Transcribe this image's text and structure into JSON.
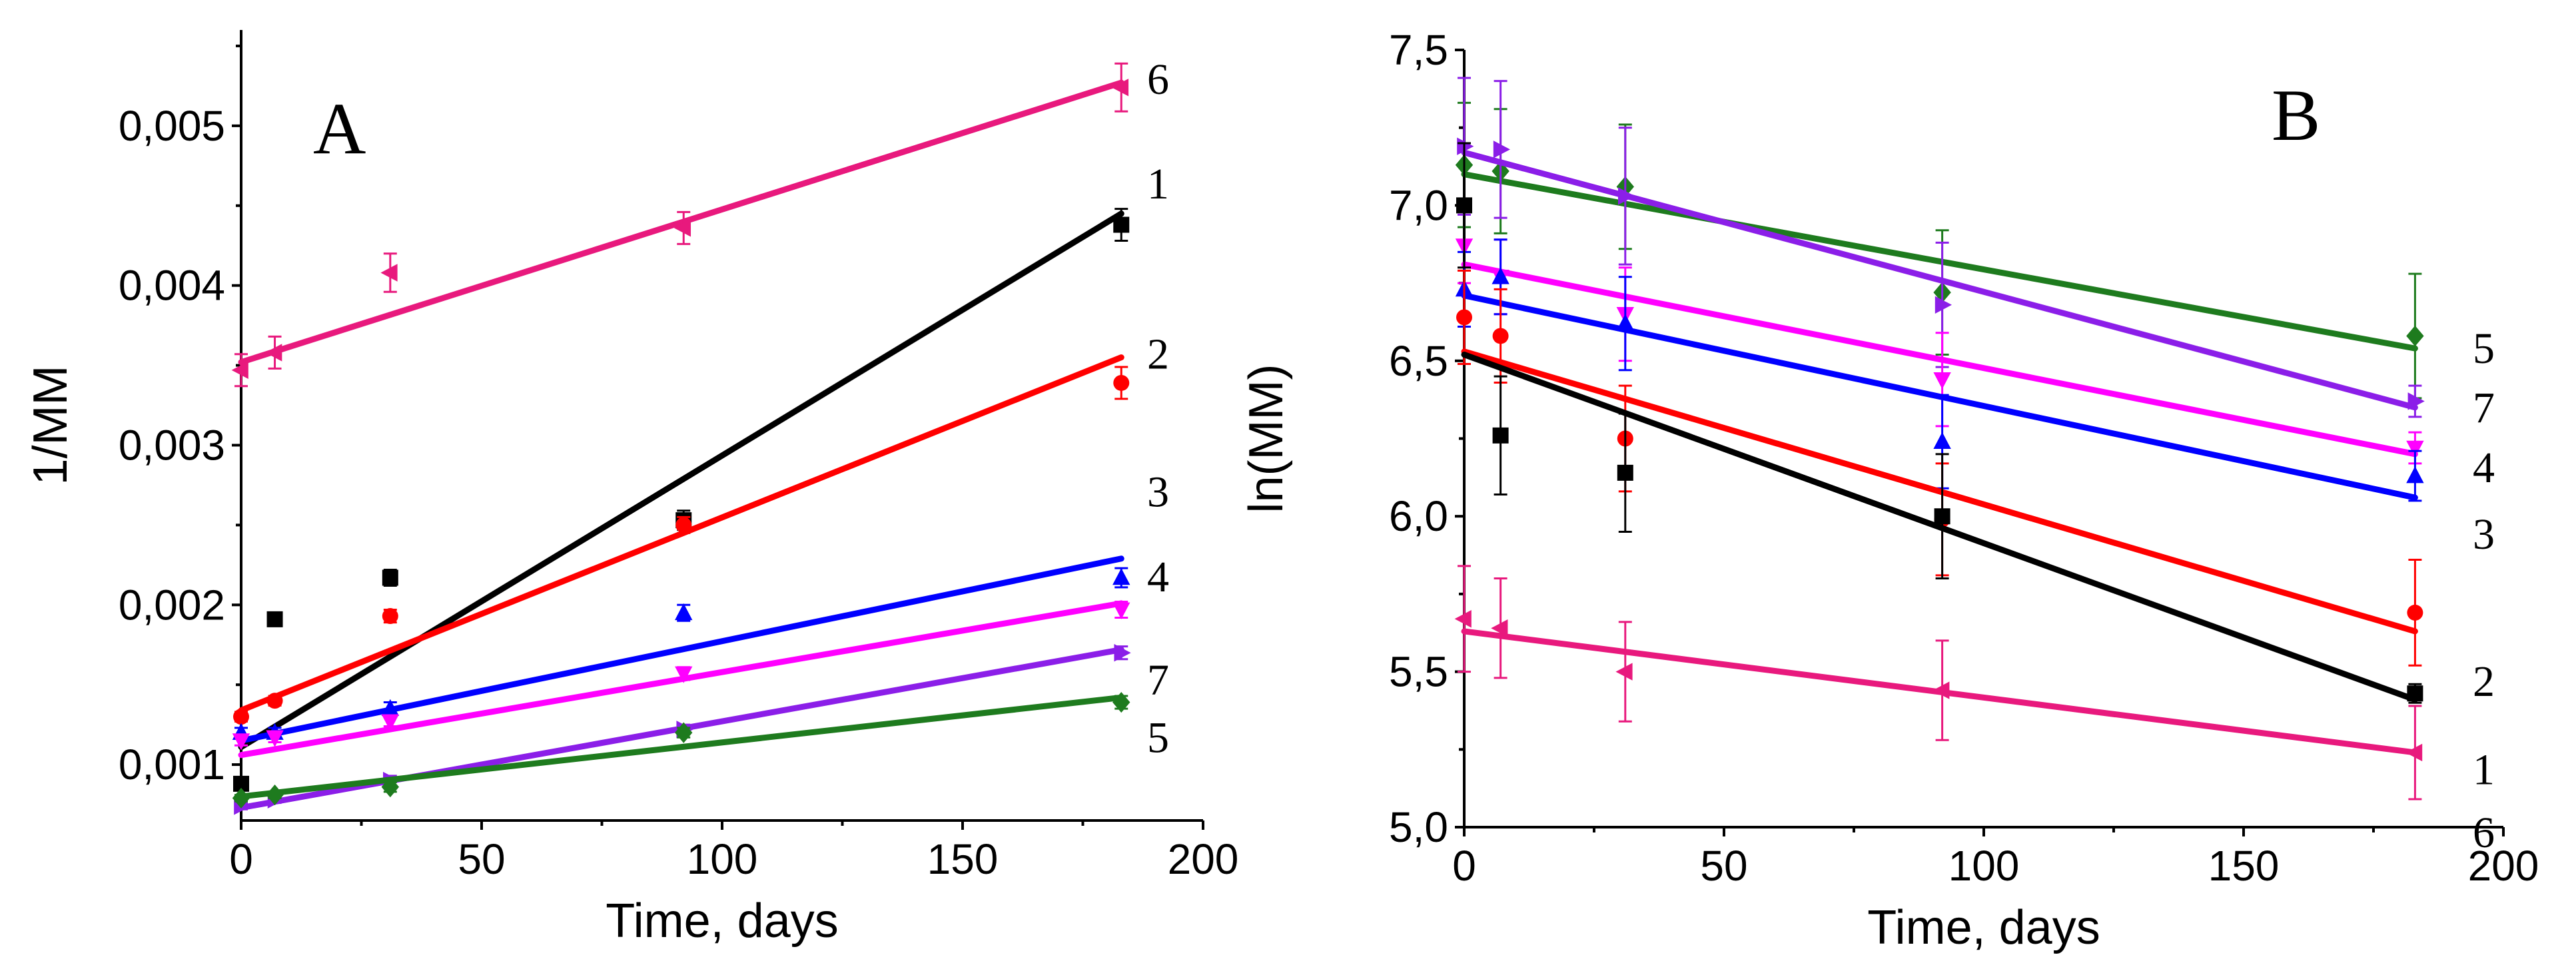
{
  "chart_data": [
    {
      "type": "scatter",
      "panel": "A",
      "title": "",
      "xlabel": "Time, days",
      "ylabel": "1/MM",
      "xlim": [
        0,
        200
      ],
      "ylim": [
        0.00065,
        0.0056
      ],
      "xticks": [
        0,
        50,
        100,
        150,
        200
      ],
      "yticks": [
        0.001,
        0.002,
        0.003,
        0.004,
        0.005
      ],
      "ytick_labels": [
        "0,001",
        "0,002",
        "0,003",
        "0,004",
        "0,005"
      ],
      "series": [
        {
          "name": "6",
          "color": "#e8197d",
          "marker": "left-triangle",
          "x": [
            0,
            7,
            31,
            92,
            183
          ],
          "y": [
            0.00347,
            0.00358,
            0.00408,
            0.00436,
            0.00524
          ],
          "err": [
            0.0001,
            0.0001,
            0.00012,
            0.0001,
            0.00015
          ],
          "fit": [
            0.00352,
            0.00527
          ]
        },
        {
          "name": "1",
          "color": "#000000",
          "marker": "square",
          "x": [
            0,
            7,
            31,
            92,
            183
          ],
          "y": [
            0.00088,
            0.00191,
            0.00217,
            0.00253,
            0.00438
          ],
          "err": [
            3e-05,
            4e-05,
            5e-05,
            6e-05,
            0.0001
          ],
          "fit": [
            0.00111,
            0.00445
          ]
        },
        {
          "name": "2",
          "color": "#ff0000",
          "marker": "circle",
          "x": [
            0,
            7,
            31,
            92,
            183
          ],
          "y": [
            0.0013,
            0.0014,
            0.00193,
            0.0025,
            0.00339
          ],
          "err": [
            3e-05,
            3e-05,
            4e-05,
            5e-05,
            0.0001
          ],
          "fit": [
            0.00134,
            0.00355
          ]
        },
        {
          "name": "3",
          "color": "#0000ff",
          "marker": "up-triangle",
          "x": [
            0,
            7,
            31,
            92,
            183
          ],
          "y": [
            0.0012,
            0.0012,
            0.00135,
            0.00195,
            0.00217
          ],
          "err": [
            3e-05,
            3e-05,
            4e-05,
            5e-05,
            6e-05
          ],
          "fit": [
            0.00115,
            0.00229
          ]
        },
        {
          "name": "4",
          "color": "#ff00ff",
          "marker": "down-triangle",
          "x": [
            0,
            7,
            31,
            92,
            183
          ],
          "y": [
            0.00115,
            0.00117,
            0.00127,
            0.00157,
            0.00197
          ],
          "err": [
            3e-05,
            3e-05,
            3e-05,
            4e-05,
            5e-05
          ],
          "fit": [
            0.00106,
            0.00201
          ]
        },
        {
          "name": "7",
          "color": "#8b1ee8",
          "marker": "right-triangle",
          "x": [
            0,
            7,
            31,
            92,
            183
          ],
          "y": [
            0.00074,
            0.00078,
            0.0009,
            0.00122,
            0.0017
          ],
          "err": [
            2e-05,
            2e-05,
            3e-05,
            3e-05,
            4e-05
          ],
          "fit": [
            0.00073,
            0.00172
          ]
        },
        {
          "name": "5",
          "color": "#1e7b1e",
          "marker": "diamond",
          "x": [
            0,
            7,
            31,
            92,
            183
          ],
          "y": [
            0.00079,
            0.00081,
            0.00086,
            0.0012,
            0.00139
          ],
          "err": [
            2e-05,
            2e-05,
            3e-05,
            3e-05,
            4e-05
          ],
          "fit": [
            0.0008,
            0.00142
          ]
        }
      ]
    },
    {
      "type": "scatter",
      "panel": "B",
      "title": "",
      "xlabel": "Time, days",
      "ylabel": "ln(MM)",
      "xlim": [
        0,
        200
      ],
      "ylim": [
        5.0,
        7.5
      ],
      "xticks": [
        0,
        50,
        100,
        150,
        200
      ],
      "yticks": [
        5.0,
        5.5,
        6.0,
        6.5,
        7.0,
        7.5
      ],
      "ytick_labels": [
        "5,0",
        "5,5",
        "6,0",
        "6,5",
        "7,0",
        "7,5"
      ],
      "series": [
        {
          "name": "5",
          "color": "#1e7b1e",
          "marker": "diamond",
          "x": [
            0,
            7,
            31,
            92,
            183
          ],
          "y": [
            7.13,
            7.11,
            7.06,
            6.72,
            6.58
          ],
          "err": [
            0.2,
            0.2,
            0.2,
            0.2,
            0.2
          ],
          "fit": [
            7.1,
            6.54
          ]
        },
        {
          "name": "7",
          "color": "#8b1ee8",
          "marker": "right-triangle",
          "x": [
            0,
            7,
            31,
            92,
            183
          ],
          "y": [
            7.19,
            7.18,
            7.03,
            6.68,
            6.37
          ],
          "err": [
            0.22,
            0.22,
            0.22,
            0.2,
            0.05
          ],
          "fit": [
            7.17,
            6.35
          ]
        },
        {
          "name": "4",
          "color": "#ff00ff",
          "marker": "down-triangle",
          "x": [
            0,
            7,
            31,
            92,
            183
          ],
          "y": [
            6.87,
            6.77,
            6.65,
            6.44,
            6.22
          ],
          "err": [
            0.12,
            0.12,
            0.15,
            0.15,
            0.05
          ],
          "fit": [
            6.81,
            6.2
          ]
        },
        {
          "name": "3",
          "color": "#0000ff",
          "marker": "up-triangle",
          "x": [
            0,
            7,
            31,
            92,
            183
          ],
          "y": [
            6.73,
            6.77,
            6.62,
            6.24,
            6.13
          ],
          "err": [
            0.12,
            0.12,
            0.15,
            0.15,
            0.08
          ],
          "fit": [
            6.71,
            6.06
          ]
        },
        {
          "name": "2",
          "color": "#ff0000",
          "marker": "circle",
          "x": [
            0,
            7,
            31,
            92,
            183
          ],
          "y": [
            6.64,
            6.58,
            6.25,
            5.99,
            5.69
          ],
          "err": [
            0.15,
            0.15,
            0.17,
            0.18,
            0.17
          ],
          "fit": [
            6.53,
            5.63
          ]
        },
        {
          "name": "1",
          "color": "#000000",
          "marker": "square",
          "x": [
            0,
            7,
            31,
            92,
            183
          ],
          "y": [
            7.0,
            6.26,
            6.14,
            6.0,
            5.43
          ],
          "err": [
            0.2,
            0.19,
            0.19,
            0.2,
            0.03
          ],
          "fit": [
            6.52,
            5.41
          ]
        },
        {
          "name": "6",
          "color": "#e8197d",
          "marker": "left-triangle",
          "x": [
            0,
            7,
            31,
            92,
            183
          ],
          "y": [
            5.67,
            5.64,
            5.5,
            5.44,
            5.24
          ],
          "err": [
            0.17,
            0.16,
            0.16,
            0.16,
            0.15
          ],
          "fit": [
            5.63,
            5.24
          ]
        }
      ]
    }
  ]
}
